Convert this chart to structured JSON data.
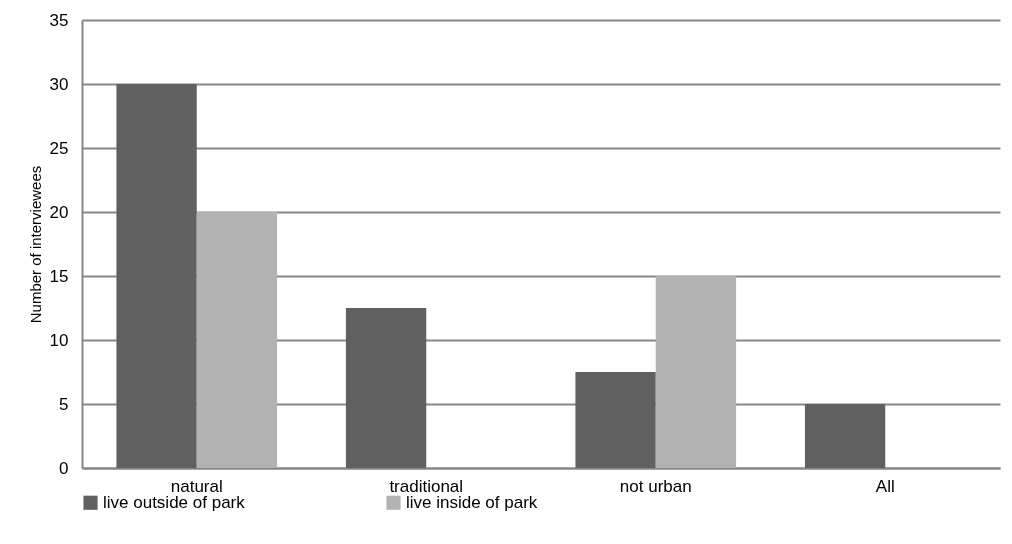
{
  "chart_data": {
    "type": "bar",
    "ylabel": "Number of interviewees",
    "categories": [
      "natural",
      "traditional",
      "not urban",
      "All"
    ],
    "series": [
      {
        "name": "live outside of park",
        "color": "#606060",
        "values": [
          30,
          12.5,
          7.5,
          5
        ]
      },
      {
        "name": "live inside of park",
        "color": "#b2b2b2",
        "values": [
          20,
          0,
          15,
          0
        ]
      }
    ],
    "ylim": [
      0,
      35
    ],
    "yticks": [
      0,
      5,
      10,
      15,
      20,
      25,
      30,
      35
    ],
    "grid": "y",
    "legend": "bottom"
  }
}
